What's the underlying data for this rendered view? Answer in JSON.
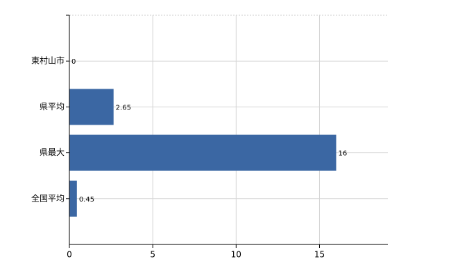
{
  "chart_data": {
    "type": "bar",
    "orientation": "horizontal",
    "categories": [
      "東村山市",
      "県平均",
      "県最大",
      "全国平均"
    ],
    "values": [
      0,
      2.65,
      16,
      0.45
    ],
    "color": "#3b67a3",
    "xlim": [
      0,
      19.1
    ],
    "xticks": [
      0,
      5,
      10,
      15
    ],
    "grid": true
  }
}
